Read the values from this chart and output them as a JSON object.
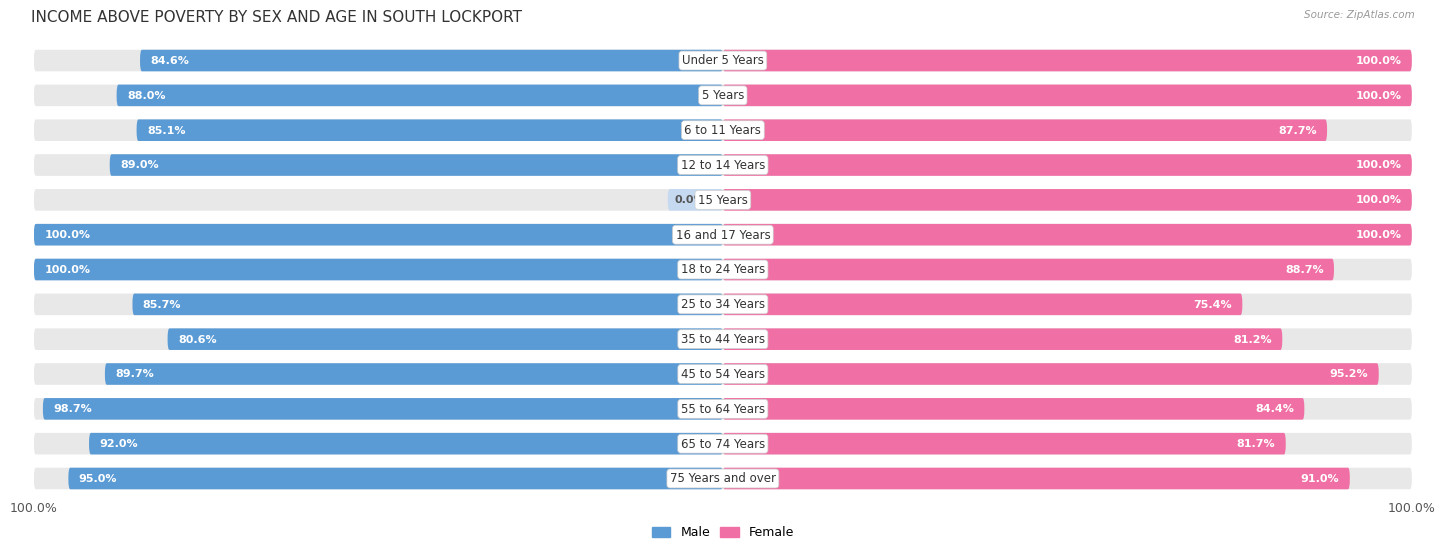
{
  "title": "INCOME ABOVE POVERTY BY SEX AND AGE IN SOUTH LOCKPORT",
  "source": "Source: ZipAtlas.com",
  "categories": [
    "Under 5 Years",
    "5 Years",
    "6 to 11 Years",
    "12 to 14 Years",
    "15 Years",
    "16 and 17 Years",
    "18 to 24 Years",
    "25 to 34 Years",
    "35 to 44 Years",
    "45 to 54 Years",
    "55 to 64 Years",
    "65 to 74 Years",
    "75 Years and over"
  ],
  "male_values": [
    84.6,
    88.0,
    85.1,
    89.0,
    0.0,
    100.0,
    100.0,
    85.7,
    80.6,
    89.7,
    98.7,
    92.0,
    95.0
  ],
  "female_values": [
    100.0,
    100.0,
    87.7,
    100.0,
    100.0,
    100.0,
    88.7,
    75.4,
    81.2,
    95.2,
    84.4,
    81.7,
    91.0
  ],
  "male_color": "#5b9bd5",
  "female_color": "#f06fa4",
  "male_light_color": "#c5d9f1",
  "female_light_color": "#f9c0d8",
  "bg_color": "#e8e8e8",
  "row_bg": "#efefef",
  "title_fontsize": 11,
  "label_fontsize": 8.5,
  "tick_fontsize": 9,
  "xlabel_bottom_left": "100.0%",
  "xlabel_bottom_right": "100.0%"
}
